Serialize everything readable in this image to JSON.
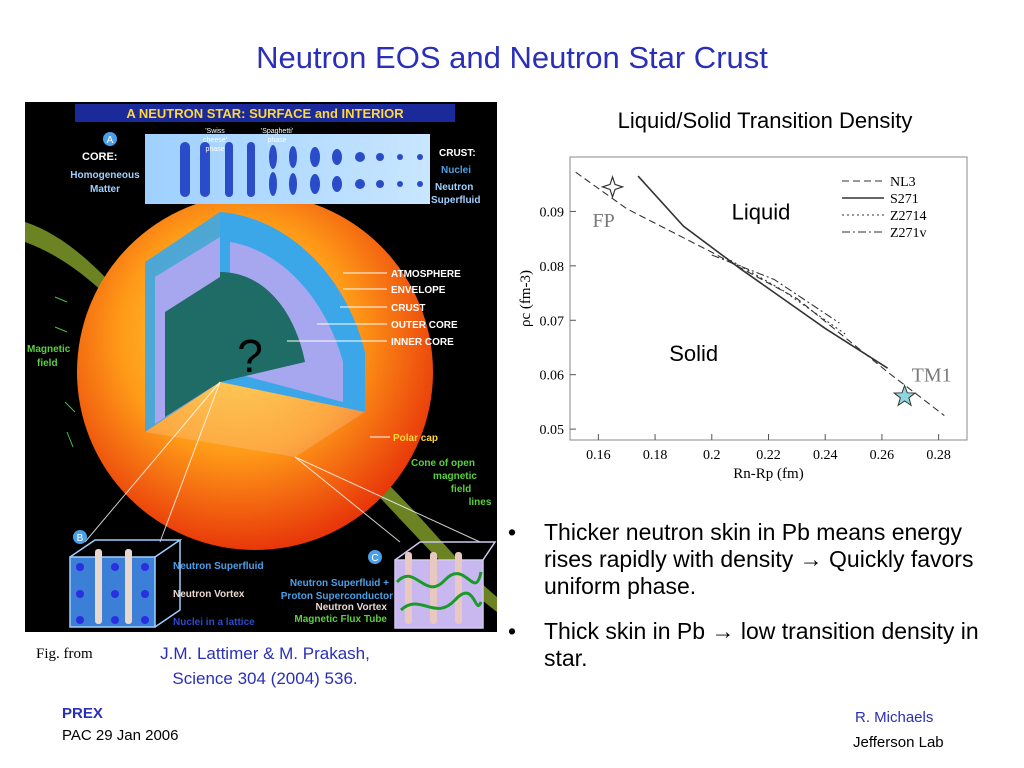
{
  "slide": {
    "title": "Neutron EOS  and  Neutron Star  Crust",
    "figure": {
      "heading": "A NEUTRON STAR:  SURFACE and INTERIOR",
      "top_left_badge": "A",
      "core_label": "CORE:",
      "core_desc_1": "Homogeneous",
      "core_desc_2": "Matter",
      "swiss_1": "'Swiss",
      "swiss_2": "cheese'",
      "swiss_3": "phase",
      "spag_1": "'Spaghetti'",
      "spag_2": "phase",
      "crust_label": "CRUST:",
      "crust_nuclei": "Nuclei",
      "crust_sf_1": "Neutron",
      "crust_sf_2": "Superfluid",
      "layers": [
        "ATMOSPHERE",
        "ENVELOPE",
        "CRUST",
        "OUTER CORE",
        "INNER CORE"
      ],
      "question": "?",
      "magnetic_1": "Magnetic",
      "magnetic_2": "field",
      "polar_cap": "Polar cap",
      "cone_1": "Cone of open",
      "cone_2": "magnetic",
      "cone_3": "field",
      "cone_4": "lines",
      "badge_b": "B",
      "badge_c": "C",
      "b_sf": "Neutron Superfluid",
      "b_vortex": "Neutron Vortex",
      "b_nuclei": "Nuclei in a lattice",
      "c_1": "Neutron Superfluid  +",
      "c_2": "Proton Superconductor",
      "c_3": "Neutron Vortex",
      "c_4": "Magnetic Flux Tube"
    },
    "chart_title": "Liquid/Solid Transition Density",
    "bullets": [
      "Thicker neutron skin in Pb means energy rises rapidly with density → Quickly favors uniform phase.",
      "Thick skin in Pb → low transition density in star."
    ],
    "bullet_marker": "•",
    "fig_from": "Fig.  from",
    "citation_1": "J.M. Lattimer  &  M. Prakash,",
    "citation_2": "Science 304 (2004) 536.",
    "footer_left_1": "PREX",
    "footer_left_2": "PAC 29   Jan 2006",
    "footer_right_1": "R.  Michaels",
    "footer_right_2": "Jefferson  Lab"
  },
  "chart_data": {
    "type": "line",
    "xlabel": "Rn-Rp (fm)",
    "ylabel": "ρc (fm-3)",
    "xlim": [
      0.15,
      0.29
    ],
    "ylim": [
      0.048,
      0.1
    ],
    "xticks": [
      "0.16",
      "0.18",
      "0.2",
      "0.22",
      "0.24",
      "0.26",
      "0.28"
    ],
    "yticks": [
      "0.05",
      "0.06",
      "0.07",
      "0.08",
      "0.09"
    ],
    "region_labels": [
      "Liquid",
      "Solid"
    ],
    "points": [
      {
        "label": "FP",
        "x": 0.165,
        "y": 0.0945
      },
      {
        "label": "TM1",
        "x": 0.268,
        "y": 0.056
      }
    ],
    "legend_position": "top-right",
    "series": [
      {
        "name": "NL3",
        "style": "dashed",
        "x": [
          0.152,
          0.17,
          0.2,
          0.23,
          0.262,
          0.282
        ],
        "y": [
          0.0972,
          0.0905,
          0.0825,
          0.074,
          0.0605,
          0.0525
        ]
      },
      {
        "name": "S271",
        "style": "solid",
        "x": [
          0.174,
          0.19,
          0.21,
          0.24,
          0.262
        ],
        "y": [
          0.0965,
          0.0873,
          0.0795,
          0.0685,
          0.0612
        ]
      },
      {
        "name": "Z2714",
        "style": "dotted",
        "x": [
          0.205,
          0.225,
          0.247
        ],
        "y": [
          0.0815,
          0.0755,
          0.0675
        ]
      },
      {
        "name": "Z271v",
        "style": "dashdot",
        "x": [
          0.2,
          0.222,
          0.245
        ],
        "y": [
          0.082,
          0.0775,
          0.0695
        ]
      }
    ]
  }
}
